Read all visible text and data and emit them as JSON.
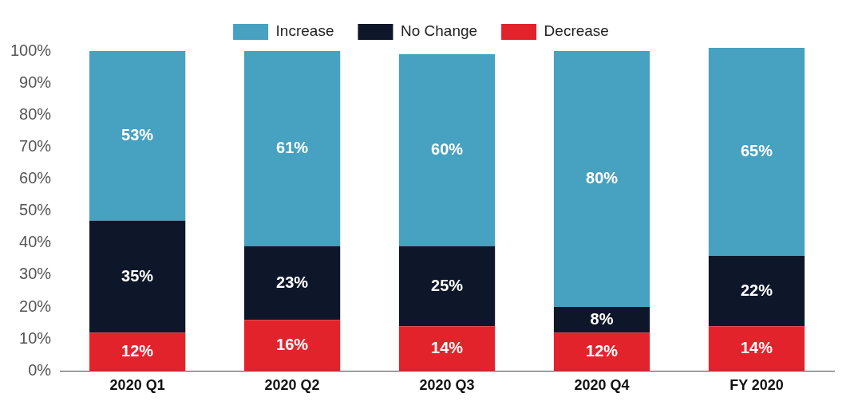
{
  "chart_data": {
    "type": "bar",
    "stacked": true,
    "categories": [
      "2020 Q1",
      "2020 Q2",
      "2020 Q3",
      "2020 Q4",
      "FY 2020"
    ],
    "series": [
      {
        "name": "Decrease",
        "color": "#e3232c",
        "values": [
          12,
          16,
          14,
          12,
          14
        ],
        "value_labels": [
          "12%",
          "16%",
          "14%",
          "12%",
          "14%"
        ]
      },
      {
        "name": "No Change",
        "color": "#0e1729",
        "values": [
          35,
          23,
          25,
          8,
          22
        ],
        "value_labels": [
          "35%",
          "23%",
          "25%",
          "8%",
          "22%"
        ]
      },
      {
        "name": "Increase",
        "color": "#47a1c0",
        "values": [
          53,
          61,
          60,
          80,
          65
        ],
        "value_labels": [
          "53%",
          "61%",
          "60%",
          "80%",
          "65%"
        ]
      }
    ],
    "ylim": [
      0,
      101
    ],
    "yticks": [
      {
        "value": 0,
        "label": "0%"
      },
      {
        "value": 10,
        "label": "10%"
      },
      {
        "value": 20,
        "label": "20%"
      },
      {
        "value": 30,
        "label": "30%"
      },
      {
        "value": 40,
        "label": "40%"
      },
      {
        "value": 50,
        "label": "50%"
      },
      {
        "value": 60,
        "label": "60%"
      },
      {
        "value": 70,
        "label": "70%"
      },
      {
        "value": 80,
        "label": "80%"
      },
      {
        "value": 90,
        "label": "90%"
      },
      {
        "value": 100,
        "label": "100%"
      }
    ],
    "grid": false,
    "legend": "top"
  }
}
